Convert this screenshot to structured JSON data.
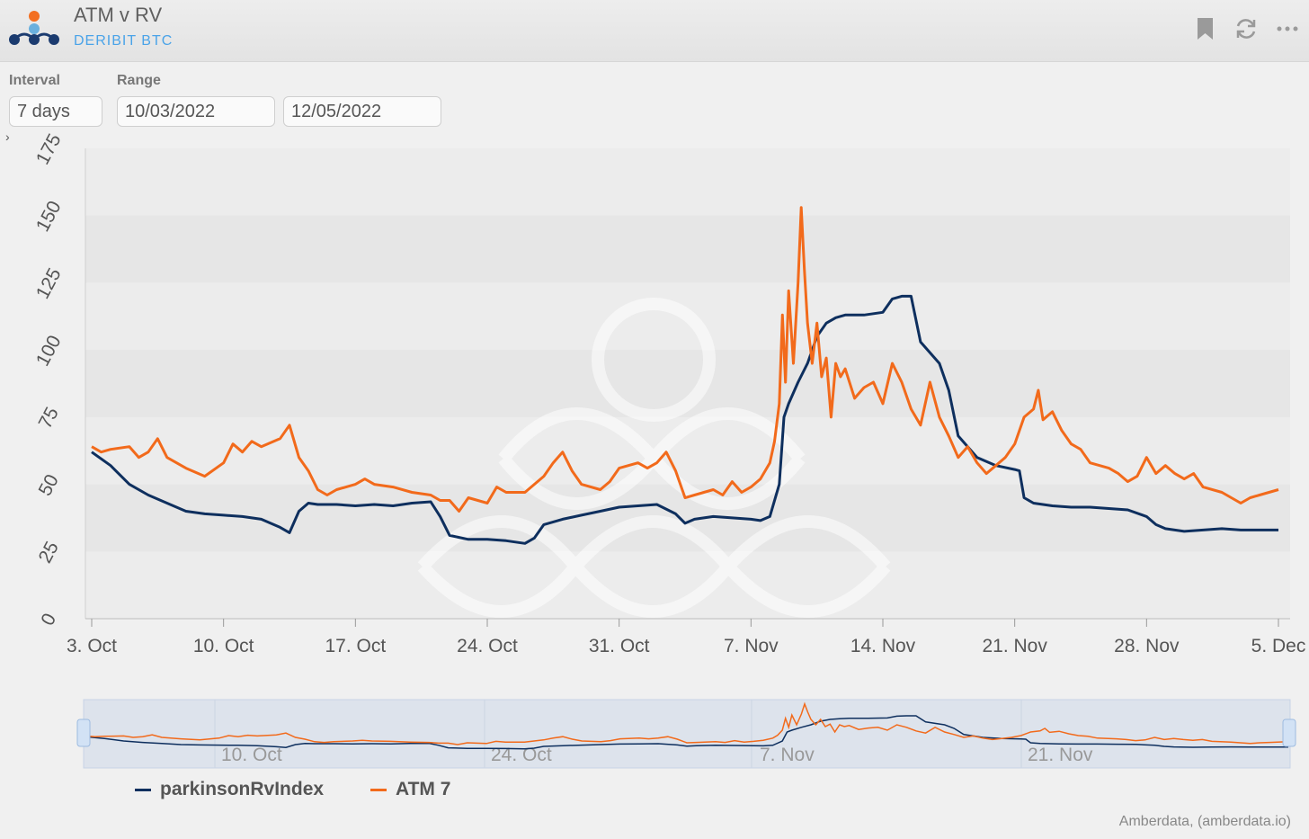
{
  "header": {
    "title": "ATM v RV",
    "subtitle": "DERIBIT BTC",
    "icons": [
      "bookmark-icon",
      "refresh-icon",
      "more-icon"
    ]
  },
  "controls": {
    "interval_label": "Interval",
    "interval_value": "7 days",
    "range_label": "Range",
    "range_start": "10/03/2022",
    "range_end": "12/05/2022"
  },
  "credits": "Amberdata, (amberdata.io)",
  "colors": {
    "rv": "#0e2f5e",
    "atm": "#f26a1b",
    "brand_orange": "#f36f21",
    "brand_blue": "#6ab0de",
    "brand_dark": "#1b3b6f"
  },
  "chart_data": {
    "type": "line",
    "title": "",
    "xlabel": "",
    "ylabel": "",
    "ylim": [
      0,
      175
    ],
    "yticks": [
      0,
      25,
      50,
      75,
      100,
      125,
      150,
      175
    ],
    "xlim": [
      "2022-10-03",
      "2022-12-05"
    ],
    "xticks": [
      {
        "date": "2022-10-03",
        "label": "3. Oct"
      },
      {
        "date": "2022-10-10",
        "label": "10. Oct"
      },
      {
        "date": "2022-10-17",
        "label": "17. Oct"
      },
      {
        "date": "2022-10-24",
        "label": "24. Oct"
      },
      {
        "date": "2022-10-31",
        "label": "31. Oct"
      },
      {
        "date": "2022-11-07",
        "label": "7. Nov"
      },
      {
        "date": "2022-11-14",
        "label": "14. Nov"
      },
      {
        "date": "2022-11-21",
        "label": "21. Nov"
      },
      {
        "date": "2022-11-28",
        "label": "28. Nov"
      },
      {
        "date": "2022-12-05",
        "label": "5. Dec"
      }
    ],
    "navigator_ticks": [
      "10. Oct",
      "24. Oct",
      "7. Nov",
      "21. Nov"
    ],
    "grid": "horizontal bands",
    "legend_position": "bottom-left",
    "series": [
      {
        "name": "parkinsonRvIndex",
        "color": "#0e2f5e",
        "points": [
          [
            "2022-10-03",
            62
          ],
          [
            "2022-10-04",
            57
          ],
          [
            "2022-10-05",
            50
          ],
          [
            "2022-10-06",
            46
          ],
          [
            "2022-10-07",
            43
          ],
          [
            "2022-10-08",
            40
          ],
          [
            "2022-10-09",
            39
          ],
          [
            "2022-10-10",
            38.5
          ],
          [
            "2022-10-11",
            38
          ],
          [
            "2022-10-12",
            37
          ],
          [
            "2022-10-13",
            34
          ],
          [
            "2022-10-13T12:00",
            32
          ],
          [
            "2022-10-14",
            40
          ],
          [
            "2022-10-14T12:00",
            43
          ],
          [
            "2022-10-15",
            42.5
          ],
          [
            "2022-10-16",
            42.5
          ],
          [
            "2022-10-17",
            42
          ],
          [
            "2022-10-18",
            42.5
          ],
          [
            "2022-10-19",
            42
          ],
          [
            "2022-10-20",
            43
          ],
          [
            "2022-10-21",
            43.5
          ],
          [
            "2022-10-21T12:00",
            38
          ],
          [
            "2022-10-22",
            31
          ],
          [
            "2022-10-23",
            29.5
          ],
          [
            "2022-10-24",
            29.5
          ],
          [
            "2022-10-25",
            29
          ],
          [
            "2022-10-26",
            28
          ],
          [
            "2022-10-26T12:00",
            30
          ],
          [
            "2022-10-27",
            35
          ],
          [
            "2022-10-28",
            37
          ],
          [
            "2022-10-29",
            38.5
          ],
          [
            "2022-10-30",
            40
          ],
          [
            "2022-10-31",
            41.5
          ],
          [
            "2022-11-01",
            42
          ],
          [
            "2022-11-02",
            42.5
          ],
          [
            "2022-11-03",
            39
          ],
          [
            "2022-11-03T12:00",
            35.5
          ],
          [
            "2022-11-04",
            37
          ],
          [
            "2022-11-05",
            38
          ],
          [
            "2022-11-06",
            37.5
          ],
          [
            "2022-11-07",
            37
          ],
          [
            "2022-11-07T12:00",
            36.5
          ],
          [
            "2022-11-08",
            38
          ],
          [
            "2022-11-08T12:00",
            50
          ],
          [
            "2022-11-08T18:00",
            75
          ],
          [
            "2022-11-09",
            80
          ],
          [
            "2022-11-09T12:00",
            88
          ],
          [
            "2022-11-10",
            95
          ],
          [
            "2022-11-10T12:00",
            105
          ],
          [
            "2022-11-11",
            110
          ],
          [
            "2022-11-11T12:00",
            112
          ],
          [
            "2022-11-12",
            113
          ],
          [
            "2022-11-13",
            113
          ],
          [
            "2022-11-14",
            114
          ],
          [
            "2022-11-14T12:00",
            119
          ],
          [
            "2022-11-15",
            120
          ],
          [
            "2022-11-15T12:00",
            120
          ],
          [
            "2022-11-16",
            103
          ],
          [
            "2022-11-17",
            95
          ],
          [
            "2022-11-17T12:00",
            85
          ],
          [
            "2022-11-18",
            68
          ],
          [
            "2022-11-19",
            60
          ],
          [
            "2022-11-20",
            57
          ],
          [
            "2022-11-21",
            55.5
          ],
          [
            "2022-11-21T06:00",
            55
          ],
          [
            "2022-11-21T12:00",
            45
          ],
          [
            "2022-11-22",
            43
          ],
          [
            "2022-11-23",
            42
          ],
          [
            "2022-11-24",
            41.5
          ],
          [
            "2022-11-25",
            41.5
          ],
          [
            "2022-11-26",
            41
          ],
          [
            "2022-11-27",
            40.5
          ],
          [
            "2022-11-28",
            38
          ],
          [
            "2022-11-28T12:00",
            35
          ],
          [
            "2022-11-29",
            33.5
          ],
          [
            "2022-11-30",
            32.5
          ],
          [
            "2022-12-01",
            33
          ],
          [
            "2022-12-02",
            33.5
          ],
          [
            "2022-12-03",
            33
          ],
          [
            "2022-12-04",
            33
          ],
          [
            "2022-12-05",
            33
          ]
        ]
      },
      {
        "name": "ATM 7",
        "color": "#f26a1b",
        "points": [
          [
            "2022-10-03",
            64
          ],
          [
            "2022-10-03T12:00",
            62
          ],
          [
            "2022-10-04",
            63
          ],
          [
            "2022-10-05",
            64
          ],
          [
            "2022-10-05T12:00",
            60
          ],
          [
            "2022-10-06",
            62
          ],
          [
            "2022-10-06T12:00",
            67
          ],
          [
            "2022-10-07",
            60
          ],
          [
            "2022-10-08",
            56
          ],
          [
            "2022-10-09",
            53
          ],
          [
            "2022-10-10",
            58
          ],
          [
            "2022-10-10T12:00",
            65
          ],
          [
            "2022-10-11",
            62
          ],
          [
            "2022-10-11T12:00",
            66
          ],
          [
            "2022-10-12",
            64
          ],
          [
            "2022-10-13",
            67
          ],
          [
            "2022-10-13T12:00",
            72
          ],
          [
            "2022-10-14",
            60
          ],
          [
            "2022-10-14T12:00",
            55
          ],
          [
            "2022-10-15",
            48
          ],
          [
            "2022-10-15T12:00",
            46
          ],
          [
            "2022-10-16",
            48
          ],
          [
            "2022-10-17",
            50
          ],
          [
            "2022-10-17T12:00",
            52
          ],
          [
            "2022-10-18",
            50
          ],
          [
            "2022-10-19",
            49
          ],
          [
            "2022-10-20",
            47
          ],
          [
            "2022-10-21",
            46
          ],
          [
            "2022-10-21T12:00",
            44
          ],
          [
            "2022-10-22",
            44
          ],
          [
            "2022-10-22T12:00",
            40
          ],
          [
            "2022-10-23",
            45
          ],
          [
            "2022-10-24",
            43
          ],
          [
            "2022-10-24T12:00",
            49
          ],
          [
            "2022-10-25",
            47
          ],
          [
            "2022-10-26",
            47
          ],
          [
            "2022-10-27",
            53
          ],
          [
            "2022-10-27T12:00",
            58
          ],
          [
            "2022-10-28",
            62
          ],
          [
            "2022-10-28T12:00",
            55
          ],
          [
            "2022-10-29",
            50
          ],
          [
            "2022-10-30",
            48
          ],
          [
            "2022-10-30T12:00",
            51
          ],
          [
            "2022-10-31",
            56
          ],
          [
            "2022-11-01",
            58
          ],
          [
            "2022-11-01T12:00",
            56
          ],
          [
            "2022-11-02",
            58
          ],
          [
            "2022-11-02T12:00",
            62
          ],
          [
            "2022-11-03",
            55
          ],
          [
            "2022-11-03T12:00",
            45
          ],
          [
            "2022-11-04",
            46
          ],
          [
            "2022-11-05",
            48
          ],
          [
            "2022-11-05T12:00",
            46
          ],
          [
            "2022-11-06",
            51
          ],
          [
            "2022-11-06T12:00",
            47
          ],
          [
            "2022-11-07",
            49
          ],
          [
            "2022-11-07T12:00",
            52
          ],
          [
            "2022-11-08",
            58
          ],
          [
            "2022-11-08T06:00",
            66
          ],
          [
            "2022-11-08T12:00",
            80
          ],
          [
            "2022-11-08T16:00",
            113
          ],
          [
            "2022-11-08T20:00",
            88
          ],
          [
            "2022-11-09",
            122
          ],
          [
            "2022-11-09T06:00",
            95
          ],
          [
            "2022-11-09T12:00",
            125
          ],
          [
            "2022-11-09T16:00",
            153
          ],
          [
            "2022-11-09T20:00",
            130
          ],
          [
            "2022-11-10",
            110
          ],
          [
            "2022-11-10T06:00",
            95
          ],
          [
            "2022-11-10T12:00",
            110
          ],
          [
            "2022-11-10T18:00",
            90
          ],
          [
            "2022-11-11",
            97
          ],
          [
            "2022-11-11T06:00",
            75
          ],
          [
            "2022-11-11T12:00",
            95
          ],
          [
            "2022-11-11T18:00",
            90
          ],
          [
            "2022-11-12",
            93
          ],
          [
            "2022-11-12T12:00",
            82
          ],
          [
            "2022-11-13",
            86
          ],
          [
            "2022-11-13T12:00",
            88
          ],
          [
            "2022-11-14",
            80
          ],
          [
            "2022-11-14T12:00",
            95
          ],
          [
            "2022-11-15",
            88
          ],
          [
            "2022-11-15T12:00",
            78
          ],
          [
            "2022-11-16",
            72
          ],
          [
            "2022-11-16T12:00",
            88
          ],
          [
            "2022-11-17",
            75
          ],
          [
            "2022-11-17T12:00",
            68
          ],
          [
            "2022-11-18",
            60
          ],
          [
            "2022-11-18T12:00",
            64
          ],
          [
            "2022-11-19",
            58
          ],
          [
            "2022-11-19T12:00",
            54
          ],
          [
            "2022-11-20",
            57
          ],
          [
            "2022-11-20T12:00",
            60
          ],
          [
            "2022-11-21",
            65
          ],
          [
            "2022-11-21T12:00",
            75
          ],
          [
            "2022-11-22",
            78
          ],
          [
            "2022-11-22T06:00",
            85
          ],
          [
            "2022-11-22T12:00",
            74
          ],
          [
            "2022-11-23",
            77
          ],
          [
            "2022-11-23T12:00",
            70
          ],
          [
            "2022-11-24",
            65
          ],
          [
            "2022-11-24T12:00",
            63
          ],
          [
            "2022-11-25",
            58
          ],
          [
            "2022-11-26",
            56
          ],
          [
            "2022-11-26T12:00",
            54
          ],
          [
            "2022-11-27",
            51
          ],
          [
            "2022-11-27T12:00",
            53
          ],
          [
            "2022-11-28",
            60
          ],
          [
            "2022-11-28T12:00",
            54
          ],
          [
            "2022-11-29",
            57
          ],
          [
            "2022-11-29T12:00",
            54
          ],
          [
            "2022-11-30",
            52
          ],
          [
            "2022-11-30T12:00",
            54
          ],
          [
            "2022-12-01",
            49
          ],
          [
            "2022-12-02",
            47
          ],
          [
            "2022-12-02T12:00",
            45
          ],
          [
            "2022-12-03",
            43
          ],
          [
            "2022-12-03T12:00",
            45
          ],
          [
            "2022-12-04",
            46
          ],
          [
            "2022-12-05",
            48
          ]
        ]
      }
    ]
  }
}
